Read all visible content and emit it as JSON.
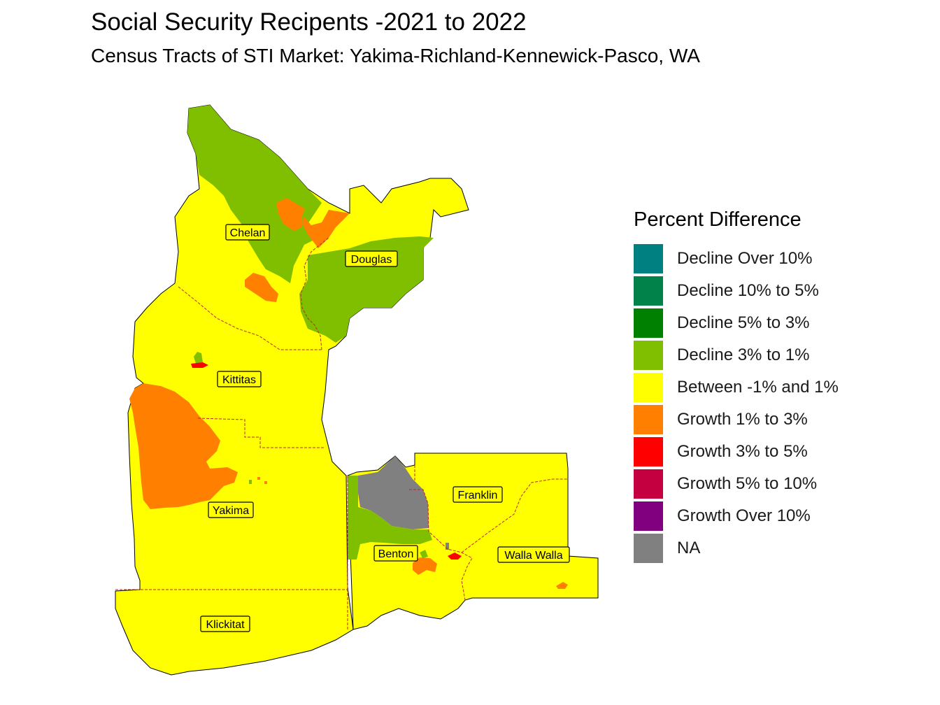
{
  "title": "Social Security Recipents -2021 to 2022",
  "subtitle": "Census Tracts of STI Market: Yakima-Richland-Kennewick-Pasco, WA",
  "legend": {
    "title": "Percent Difference",
    "items": [
      {
        "label": "Decline Over 10%",
        "color": "#008080"
      },
      {
        "label": "Decline 10% to 5%",
        "color": "#00824a"
      },
      {
        "label": "Decline 5% to 3%",
        "color": "#008000"
      },
      {
        "label": "Decline 3% to 1%",
        "color": "#80bf00"
      },
      {
        "label": "Between -1% and 1%",
        "color": "#ffff00"
      },
      {
        "label": "Growth 1% to 3%",
        "color": "#ff8000"
      },
      {
        "label": "Growth 3% to 5%",
        "color": "#ff0000"
      },
      {
        "label": "Growth 5% to 10%",
        "color": "#c40040"
      },
      {
        "label": "Growth Over 10%",
        "color": "#800080"
      },
      {
        "label": "NA",
        "color": "#808080"
      }
    ]
  },
  "counties": [
    {
      "name": "Chelan"
    },
    {
      "name": "Douglas"
    },
    {
      "name": "Kittitas"
    },
    {
      "name": "Yakima"
    },
    {
      "name": "Franklin"
    },
    {
      "name": "Benton"
    },
    {
      "name": "Walla Walla"
    },
    {
      "name": "Klickitat"
    }
  ]
}
